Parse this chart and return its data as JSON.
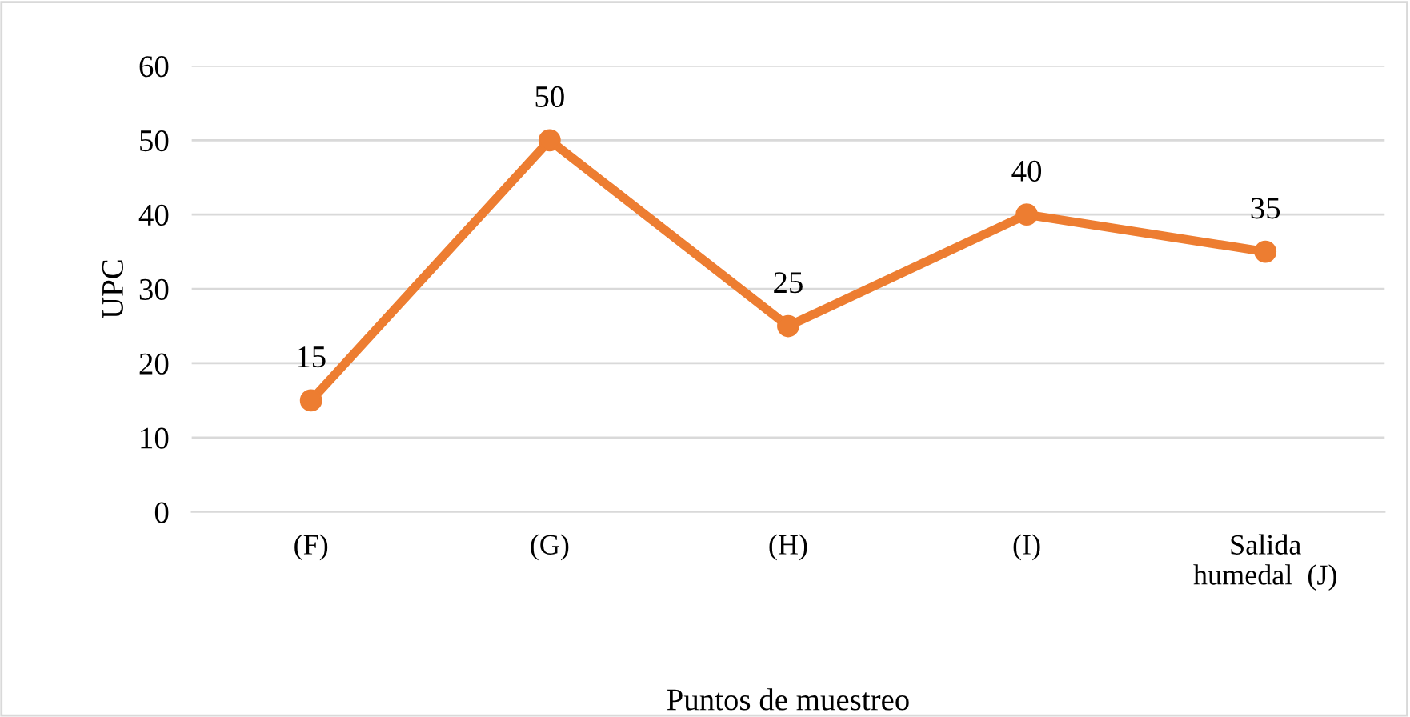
{
  "chart_data": {
    "type": "line",
    "xlabel": "Puntos de muestreo",
    "ylabel": "UPC",
    "categories": [
      "(F)",
      "(G)",
      "(H)",
      "(I)",
      "Salida\nhumedal  (J)"
    ],
    "series": [
      {
        "color": "#ed7d31",
        "values": [
          15,
          50,
          25,
          40,
          35
        ]
      }
    ],
    "ylim": [
      0,
      60
    ],
    "yticks": [
      0,
      10,
      20,
      30,
      40,
      50,
      60
    ],
    "grid": "y",
    "marker": "circle",
    "line_style": "solid",
    "data_labels": true,
    "legend": false
  }
}
